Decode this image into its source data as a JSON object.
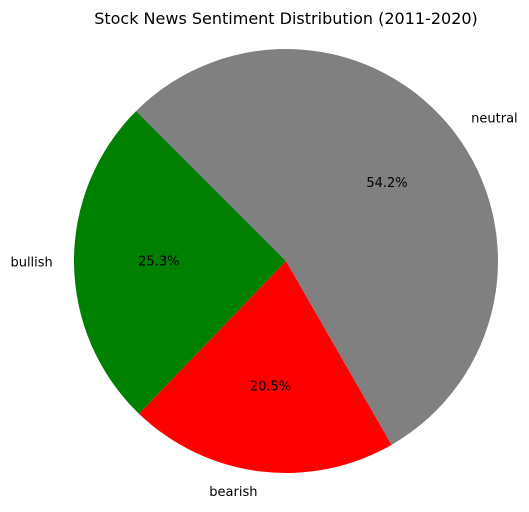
{
  "chart_data": {
    "type": "pie",
    "title": "Stock News Sentiment Distribution (2011-2020)",
    "slices": [
      {
        "label": "bullish",
        "percent": 25.3,
        "percent_label": "25.3%",
        "color": "#008000"
      },
      {
        "label": "bearish",
        "percent": 20.5,
        "percent_label": "20.5%",
        "color": "#ff0000"
      },
      {
        "label": "neutral",
        "percent": 54.2,
        "percent_label": "54.2%",
        "color": "#808080"
      }
    ],
    "start_angle_deg": 135,
    "direction": "counterclockwise"
  }
}
